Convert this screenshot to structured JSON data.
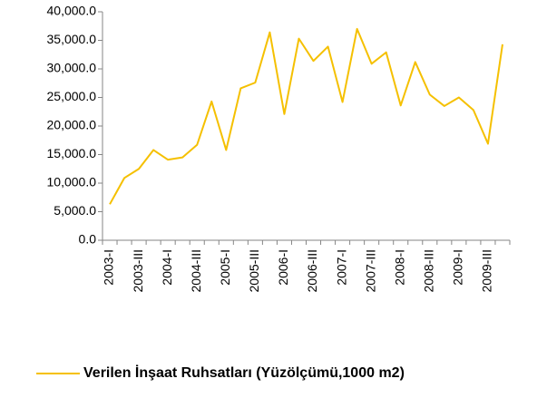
{
  "chart_data": {
    "type": "line",
    "categories": [
      "2003-I",
      null,
      "2003-III",
      null,
      "2004-I",
      null,
      "2004-III",
      null,
      "2005-I",
      null,
      "2005-III",
      null,
      "2006-I",
      null,
      "2006-III",
      null,
      "2007-I",
      null,
      "2007-III",
      null,
      "2008-I",
      null,
      "2008-III",
      null,
      "2009-I",
      null,
      "2009-III",
      null
    ],
    "series": [
      {
        "name": "Verilen İnşaat Ruhsatları (Yüzölçümü,1000 m2)",
        "color": "#f5c000",
        "values": [
          6300,
          10900,
          12500,
          15800,
          14100,
          14500,
          16700,
          24300,
          15800,
          26600,
          27600,
          36400,
          22100,
          35300,
          31400,
          33900,
          24200,
          37000,
          30900,
          32900,
          23600,
          31200,
          25500,
          23500,
          25000,
          22800,
          16900,
          34300
        ]
      }
    ],
    "ylim": [
      0,
      40000
    ],
    "yticks": [
      {
        "value": 0,
        "label": "0.0"
      },
      {
        "value": 5000,
        "label": "5,000.0"
      },
      {
        "value": 10000,
        "label": "10,000.0"
      },
      {
        "value": 15000,
        "label": "15,000.0"
      },
      {
        "value": 20000,
        "label": "20,000.0"
      },
      {
        "value": 25000,
        "label": "25,000.0"
      },
      {
        "value": 30000,
        "label": "30,000.0"
      },
      {
        "value": 35000,
        "label": "35,000.0"
      },
      {
        "value": 40000,
        "label": "40,000.0"
      }
    ],
    "grid": false,
    "legend": "bottom"
  }
}
